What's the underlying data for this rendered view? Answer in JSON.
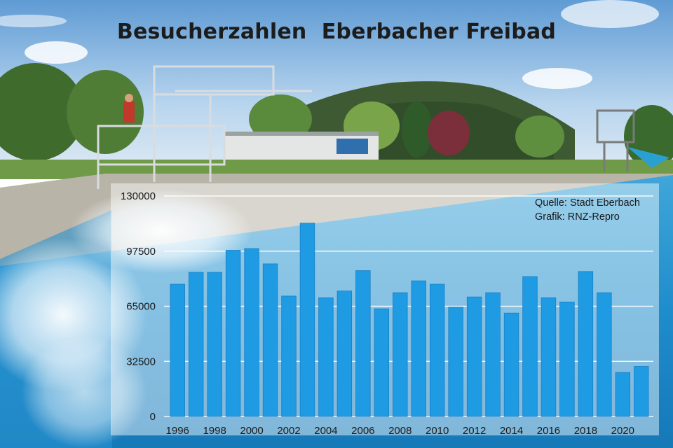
{
  "colors": {
    "bar": "#1e9be3",
    "bar_edge": "#1780c4",
    "grid": "#ffffff",
    "title": "#1c1c1c"
  },
  "background": "photo-outdoor-swimming-pool-with-diving-tower-and-wooded-hill",
  "chart_data": {
    "type": "bar",
    "title": "Besucherzahlen  Eberbacher Freibad",
    "source_lines": [
      "Quelle: Stadt Eberbach",
      "Grafik: RNZ-Repro"
    ],
    "xlabel": "",
    "ylabel": "",
    "ylim": [
      0,
      130000
    ],
    "yticks": [
      0,
      32500,
      65000,
      97500,
      130000
    ],
    "xtick_labels": [
      "1996",
      "1998",
      "2000",
      "2002",
      "2004",
      "2006",
      "2008",
      "2010",
      "2012",
      "2014",
      "2016",
      "2018",
      "2020"
    ],
    "grid": true,
    "categories": [
      "1996",
      "1997",
      "1998",
      "1999",
      "2000",
      "2001",
      "2002",
      "2003",
      "2004",
      "2005",
      "2006",
      "2007",
      "2008",
      "2009",
      "2010",
      "2011",
      "2012",
      "2013",
      "2014",
      "2015",
      "2016",
      "2017",
      "2018",
      "2019",
      "2020",
      "2021"
    ],
    "values": [
      78000,
      85000,
      85000,
      98000,
      99000,
      90000,
      71000,
      114000,
      70000,
      74000,
      86000,
      63500,
      73000,
      80000,
      78000,
      64500,
      70500,
      73000,
      61000,
      82500,
      70000,
      67500,
      85500,
      73000,
      26000,
      29500
    ]
  }
}
